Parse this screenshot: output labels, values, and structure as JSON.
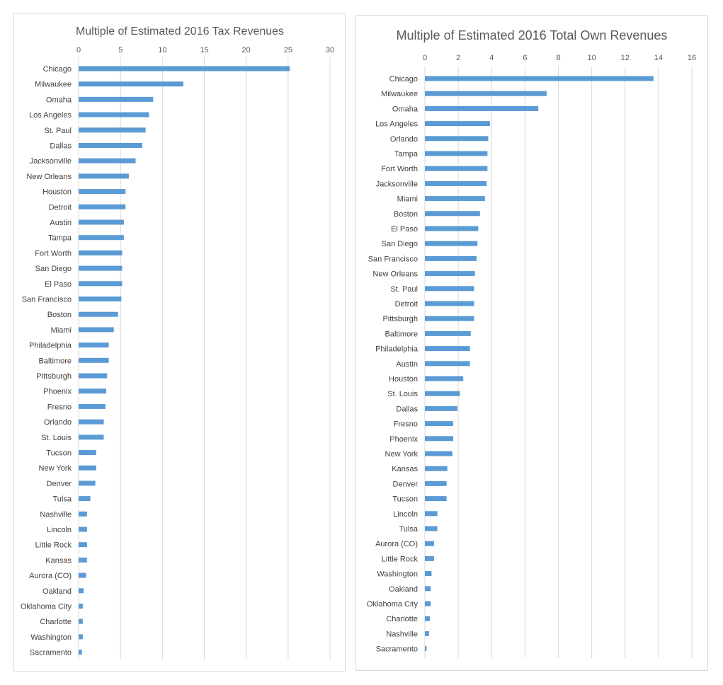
{
  "chart_data": [
    {
      "type": "bar",
      "orientation": "horizontal",
      "title": "Multiple of Estimated 2016 Tax Revenues",
      "xlabel": "",
      "ylabel": "",
      "xlim": [
        0,
        30
      ],
      "ticks": [
        0,
        5,
        10,
        15,
        20,
        25,
        30
      ],
      "grid": true,
      "legend": "none",
      "color": "#5b9bd5",
      "categories": [
        "Chicago",
        "Milwaukee",
        "Omaha",
        "Los Angeles",
        "St. Paul",
        "Dallas",
        "Jacksonville",
        "New Orleans",
        "Houston",
        "Detroit",
        "Austin",
        "Tampa",
        "Fort Worth",
        "San Diego",
        "El Paso",
        "San Francisco",
        "Boston",
        "Miami",
        "Philadelphia",
        "Baltimore",
        "Pittsburgh",
        "Phoenix",
        "Fresno",
        "Orlando",
        "St. Louis",
        "Tucson",
        "New York",
        "Denver",
        "Tulsa",
        "Nashville",
        "Lincoln",
        "Little Rock",
        "Kansas",
        "Aurora (CO)",
        "Oakland",
        "Oklahoma City",
        "Charlotte",
        "Washington",
        "Sacramento"
      ],
      "values": [
        25.2,
        12.5,
        8.9,
        8.4,
        8.0,
        7.6,
        6.8,
        6.0,
        5.6,
        5.6,
        5.4,
        5.4,
        5.2,
        5.2,
        5.2,
        5.1,
        4.7,
        4.2,
        3.6,
        3.6,
        3.4,
        3.3,
        3.2,
        3.0,
        3.0,
        2.1,
        2.1,
        2.0,
        1.4,
        1.0,
        1.0,
        1.0,
        1.0,
        0.9,
        0.6,
        0.5,
        0.5,
        0.5,
        0.4
      ]
    },
    {
      "type": "bar",
      "orientation": "horizontal",
      "title": "Multiple of Estimated 2016 Total Own Revenues",
      "xlabel": "",
      "ylabel": "",
      "xlim": [
        0,
        16
      ],
      "ticks": [
        0,
        2,
        4,
        6,
        8,
        10,
        12,
        14,
        16
      ],
      "grid": true,
      "legend": "none",
      "color": "#5b9bd5",
      "categories": [
        "Chicago",
        "Milwaukee",
        "Omaha",
        "Los Angeles",
        "Orlando",
        "Tampa",
        "Fort Worth",
        "Jacksonville",
        "Miami",
        "Boston",
        "El Paso",
        "San Diego",
        "San Francisco",
        "New Orleans",
        "St. Paul",
        "Detroit",
        "Pittsburgh",
        "Baltimore",
        "Philadelphia",
        "Austin",
        "Houston",
        "St. Louis",
        "Dallas",
        "Fresno",
        "Phoenix",
        "New York",
        "Kansas",
        "Denver",
        "Tucson",
        "Lincoln",
        "Tulsa",
        "Aurora (CO)",
        "Little Rock",
        "Washington",
        "Oakland",
        "Oklahoma City",
        "Charlotte",
        "Nashville",
        "Sacramento"
      ],
      "values": [
        13.7,
        7.3,
        6.8,
        3.9,
        3.8,
        3.75,
        3.75,
        3.7,
        3.6,
        3.3,
        3.2,
        3.15,
        3.1,
        3.0,
        2.95,
        2.95,
        2.95,
        2.75,
        2.7,
        2.7,
        2.3,
        2.1,
        1.95,
        1.7,
        1.7,
        1.65,
        1.35,
        1.3,
        1.3,
        0.75,
        0.75,
        0.55,
        0.55,
        0.4,
        0.35,
        0.35,
        0.3,
        0.25,
        0.1
      ]
    }
  ]
}
